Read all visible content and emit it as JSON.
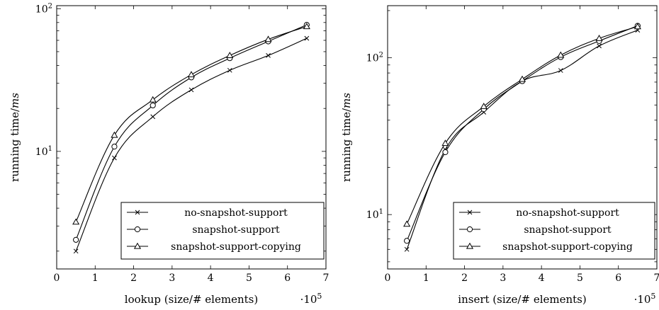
{
  "chart_data": [
    {
      "type": "line",
      "xlabel": "lookup (size/# elements)",
      "ylabel": "running time/ms",
      "x_multiplier_label": "·10^5",
      "y_scale": "log",
      "x_ticks": [
        0,
        1,
        2,
        3,
        4,
        5,
        6,
        7
      ],
      "x_range": [
        0,
        7
      ],
      "y_range": [
        1.5,
        105
      ],
      "y_major_ticks": [
        10,
        100
      ],
      "y_minor_ticks": [
        2,
        3,
        4,
        5,
        6,
        7,
        8,
        9,
        20,
        30,
        40,
        50,
        60,
        70,
        80,
        90
      ],
      "legend_position": "bottom-right",
      "x": [
        0.5,
        1.5,
        2.5,
        3.5,
        4.5,
        5.5,
        6.5
      ],
      "series": [
        {
          "name": "no-snapshot-support",
          "marker": "x",
          "values": [
            2.0,
            9.0,
            17.5,
            27.0,
            37.0,
            47.0,
            62.0
          ]
        },
        {
          "name": "snapshot-support",
          "marker": "o",
          "values": [
            2.4,
            10.8,
            21.0,
            33.0,
            45.0,
            59.0,
            77.0
          ]
        },
        {
          "name": "snapshot-support-copying",
          "marker": "triangle",
          "values": [
            3.2,
            13.0,
            23.0,
            34.5,
            47.0,
            61.0,
            75.0
          ]
        }
      ]
    },
    {
      "type": "line",
      "xlabel": "insert (size/# elements)",
      "ylabel": "running time/ms",
      "x_multiplier_label": "·10^5",
      "y_scale": "log",
      "x_ticks": [
        0,
        1,
        2,
        3,
        4,
        5,
        6,
        7
      ],
      "x_range": [
        0,
        7
      ],
      "y_range": [
        4.5,
        215
      ],
      "y_major_ticks": [
        10,
        100
      ],
      "y_minor_ticks": [
        5,
        6,
        7,
        8,
        9,
        20,
        30,
        40,
        50,
        60,
        70,
        80,
        90,
        200
      ],
      "legend_position": "bottom-right",
      "x": [
        0.5,
        1.5,
        2.5,
        3.5,
        4.5,
        5.5,
        6.5
      ],
      "series": [
        {
          "name": "no-snapshot-support",
          "marker": "x",
          "values": [
            6.0,
            26.0,
            45.0,
            71.0,
            83.0,
            119.0,
            150.0
          ]
        },
        {
          "name": "snapshot-support",
          "marker": "o",
          "values": [
            6.8,
            25.0,
            47.0,
            71.0,
            101.0,
            128.0,
            160.0
          ]
        },
        {
          "name": "snapshot-support-copying",
          "marker": "triangle",
          "values": [
            8.7,
            28.5,
            49.0,
            73.0,
            104.0,
            133.0,
            158.0
          ]
        }
      ]
    }
  ]
}
